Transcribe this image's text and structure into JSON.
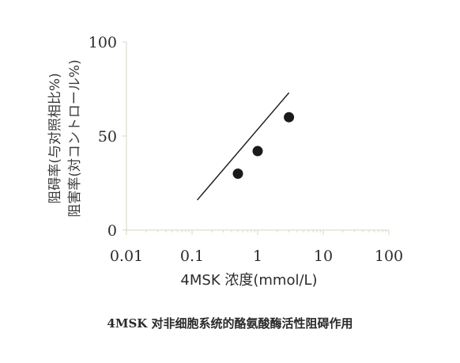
{
  "chart_data": {
    "type": "scatter",
    "x_scale": "log",
    "xlim": [
      0.01,
      100
    ],
    "ylim": [
      0,
      100
    ],
    "xticks": [
      "0.01",
      "0.1",
      "1",
      "10",
      "100"
    ],
    "yticks": [
      "0",
      "50",
      "100"
    ],
    "xlabel": "4MSK 浓度(mmol/L)",
    "ylabel_lines": [
      "阻碍率(与对照相比%)",
      "阻害率(対コントロール%)"
    ],
    "points": [
      {
        "x": 0.5,
        "y": 30
      },
      {
        "x": 1,
        "y": 42
      },
      {
        "x": 3,
        "y": 60
      }
    ],
    "trend_line": [
      {
        "x": 0.12,
        "y": 16
      },
      {
        "x": 3,
        "y": 73
      }
    ],
    "colors": {
      "ink": "#1a1a1a",
      "axis": "#d9d3c2"
    }
  },
  "caption": "4MSK 对非细胞系统的酪氨酸酶活性阻碍作用"
}
